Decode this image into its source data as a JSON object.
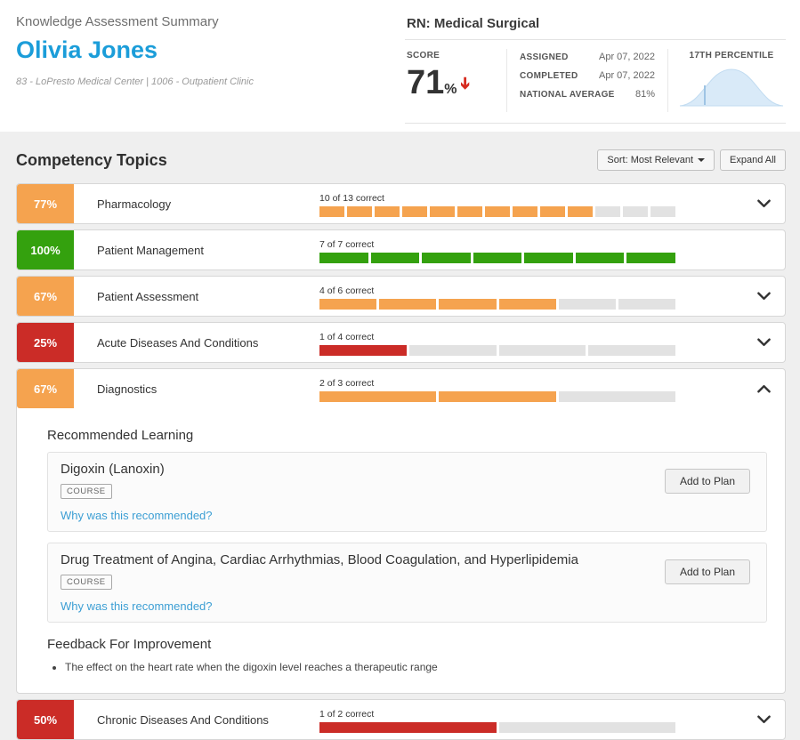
{
  "colors": {
    "orange": "#f5a34f",
    "green": "#34a10e",
    "red": "#cb2c27",
    "name_blue": "#1b9dd9",
    "link_blue": "#3d9fd4",
    "segment_empty": "#e2e2e2",
    "score_arrow_red": "#d62b1f"
  },
  "header": {
    "subtitle": "Knowledge Assessment Summary",
    "name": "Olivia Jones",
    "org": "83 - LoPresto Medical Center  |  1006 - Outpatient Clinic"
  },
  "assessment": {
    "title": "RN: Medical Surgical",
    "score_label": "SCORE",
    "score_value": "71",
    "score_unit": "%",
    "assigned_label": "ASSIGNED",
    "assigned_value": "Apr 07, 2022",
    "completed_label": "COMPLETED",
    "completed_value": "Apr 07, 2022",
    "national_avg_label": "NATIONAL AVERAGE",
    "national_avg_value": "81%",
    "percentile_label": "17TH PERCENTILE"
  },
  "topics_section": {
    "title": "Competency Topics",
    "sort_label": "Sort: Most Relevant",
    "expand_all_label": "Expand All"
  },
  "topics": [
    {
      "percent": "77%",
      "name": "Pharmacology",
      "progress_label": "10 of 13 correct",
      "correct": 10,
      "total": 13,
      "color": "orange",
      "expandable": true,
      "expanded": false
    },
    {
      "percent": "100%",
      "name": "Patient Management",
      "progress_label": "7 of 7 correct",
      "correct": 7,
      "total": 7,
      "color": "green",
      "expandable": false,
      "expanded": false
    },
    {
      "percent": "67%",
      "name": "Patient Assessment",
      "progress_label": "4 of 6 correct",
      "correct": 4,
      "total": 6,
      "color": "orange",
      "expandable": true,
      "expanded": false
    },
    {
      "percent": "25%",
      "name": "Acute Diseases And Conditions",
      "progress_label": "1 of 4 correct",
      "correct": 1,
      "total": 4,
      "color": "red",
      "expandable": true,
      "expanded": false
    },
    {
      "percent": "67%",
      "name": "Diagnostics",
      "progress_label": "2 of 3 correct",
      "correct": 2,
      "total": 3,
      "color": "orange",
      "expandable": true,
      "expanded": true
    },
    {
      "percent": "50%",
      "name": "Chronic Diseases And Conditions",
      "progress_label": "1 of 2 correct",
      "correct": 1,
      "total": 2,
      "color": "red",
      "expandable": true,
      "expanded": false
    }
  ],
  "expanded_panel": {
    "recommended_title": "Recommended Learning",
    "courses": [
      {
        "title": "Digoxin (Lanoxin)",
        "type": "COURSE",
        "link": "Why was this recommended?",
        "button": "Add to Plan"
      },
      {
        "title": "Drug Treatment of Angina, Cardiac Arrhythmias, Blood Coagulation, and Hyperlipidemia",
        "type": "COURSE",
        "link": "Why was this recommended?",
        "button": "Add to Plan"
      }
    ],
    "feedback_title": "Feedback For Improvement",
    "feedback_items": [
      "The effect on the heart rate when the digoxin level reaches a therapeutic range"
    ]
  }
}
